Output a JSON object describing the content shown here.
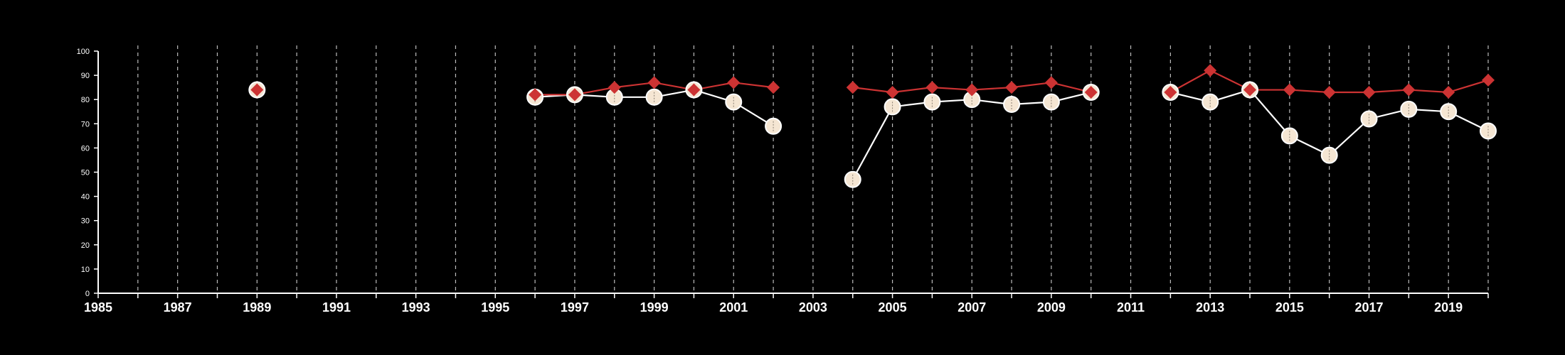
{
  "colors": {
    "background": "#000000",
    "axis": "#ffffff",
    "grid": "#bbbbbb",
    "series_a": "#cc3333",
    "series_b_fill": "#f5e6d3",
    "series_b_line": "#ffffff"
  },
  "chart_data": {
    "type": "line",
    "title": "",
    "xlabel": "",
    "ylabel": "",
    "xlim": [
      1985,
      2020
    ],
    "ylim": [
      0,
      100
    ],
    "x_ticks": [
      "1985",
      "1987",
      "1989",
      "1991",
      "1993",
      "1995",
      "1997",
      "1999",
      "2001",
      "2003",
      "2005",
      "2007",
      "2009",
      "2011",
      "2013",
      "2015",
      "2017",
      "2019"
    ],
    "y_ticks": [
      "0",
      "10",
      "20",
      "30",
      "40",
      "50",
      "60",
      "70",
      "80",
      "90",
      "100"
    ],
    "grid": "vertical dashed lines at each year",
    "legend": "none",
    "series": [
      {
        "marker": "diamond",
        "color": "#cc3333",
        "segments": [
          [
            [
              1989,
              84
            ]
          ],
          [
            [
              1996,
              82
            ],
            [
              1997,
              82
            ],
            [
              1998,
              85
            ],
            [
              1999,
              87
            ],
            [
              2000,
              84
            ],
            [
              2001,
              87
            ],
            [
              2002,
              85
            ]
          ],
          [
            [
              2004,
              85
            ],
            [
              2005,
              83
            ],
            [
              2006,
              85
            ],
            [
              2007,
              84
            ],
            [
              2008,
              85
            ],
            [
              2009,
              87
            ],
            [
              2010,
              83
            ]
          ],
          [
            [
              2012,
              83
            ],
            [
              2013,
              92
            ],
            [
              2014,
              84
            ],
            [
              2015,
              84
            ],
            [
              2016,
              83
            ],
            [
              2017,
              83
            ],
            [
              2018,
              84
            ],
            [
              2019,
              83
            ],
            [
              2020,
              88
            ]
          ]
        ]
      },
      {
        "marker": "circle",
        "color": "#f5e6d3",
        "segments": [
          [
            [
              1989,
              84
            ]
          ],
          [
            [
              1996,
              81
            ],
            [
              1997,
              82
            ],
            [
              1998,
              81
            ],
            [
              1999,
              81
            ],
            [
              2000,
              84
            ],
            [
              2001,
              79
            ],
            [
              2002,
              69
            ]
          ],
          [
            [
              2004,
              47
            ],
            [
              2005,
              77
            ],
            [
              2006,
              79
            ],
            [
              2007,
              80
            ],
            [
              2008,
              78
            ],
            [
              2009,
              79
            ],
            [
              2010,
              83
            ]
          ],
          [
            [
              2012,
              83
            ],
            [
              2013,
              79
            ],
            [
              2014,
              84
            ],
            [
              2015,
              65
            ],
            [
              2016,
              57
            ],
            [
              2017,
              72
            ],
            [
              2018,
              76
            ],
            [
              2019,
              75
            ],
            [
              2020,
              67
            ]
          ]
        ]
      }
    ]
  }
}
